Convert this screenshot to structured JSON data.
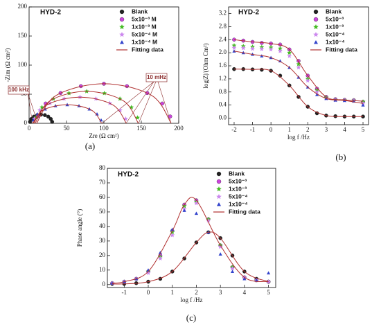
{
  "chart_data": [
    {
      "type": "scatter",
      "title": "HYD-2",
      "panel": "(a)",
      "xlabel": "Zre (Ω cm²)",
      "ylabel": "-Zim (Ω cm²)",
      "annotations": [
        "100 kHz",
        "10 mHz"
      ],
      "xlim": [
        0,
        200
      ],
      "xticks": [
        0,
        50,
        100,
        150,
        200
      ],
      "ylim": [
        0,
        200
      ],
      "yticks": [
        0,
        50,
        100,
        150,
        200
      ],
      "series": [
        {
          "name": "Blank",
          "color": "#222222",
          "marker": "circle",
          "x": [
            1.2,
            3.0,
            6.4,
            10.9,
            16,
            21.1,
            25.6,
            29.0,
            30.8
          ],
          "values": [
            2.6,
            7.5,
            11.5,
            14.1,
            15,
            14.1,
            11.5,
            7.5,
            2.6
          ]
        },
        {
          "name": "5x10⁻³ M",
          "color": "#cc44dd",
          "marker": "circle",
          "x": [
            11.4,
            22.1,
            42.1,
            69.2,
            100,
            130.8,
            157.9,
            177.9,
            188.6
          ],
          "values": [
            11.8,
            34,
            52.1,
            63.9,
            68,
            63.9,
            52.1,
            34,
            11.8
          ]
        },
        {
          "name": "1x10⁻³ M",
          "color": "#44bb22",
          "marker": "star",
          "x": [
            9.0,
            17.2,
            32.6,
            53.4,
            77,
            100.6,
            121.4,
            136.8,
            145.0
          ],
          "values": [
            9.6,
            27.5,
            42.1,
            51.7,
            55,
            51.7,
            42.1,
            27.5,
            9.6
          ]
        },
        {
          "name": "5x10⁻⁴ M",
          "color": "#cc88ee",
          "marker": "star",
          "x": [
            6.9,
            14.3,
            28.1,
            46.8,
            68,
            89.2,
            107.9,
            121.7,
            129.1
          ],
          "values": [
            7.8,
            22.5,
            34.5,
            42.3,
            45,
            42.3,
            34.5,
            22.5,
            7.8
          ]
        },
        {
          "name": "1x10⁻⁴ M",
          "color": "#3344cc",
          "marker": "triangle",
          "x": [
            5.7,
            11.2,
            21.4,
            35.3,
            51,
            66.7,
            80.6,
            90.8,
            96.3
          ],
          "values": [
            5.6,
            16,
            24.5,
            30.1,
            32,
            30.1,
            24.5,
            16,
            5.6
          ]
        },
        {
          "name": "Fitting data",
          "color": "#b03030",
          "marker": "line",
          "x": [
            10,
            36.4,
            100,
            163.6,
            190,
            null,
            8,
            28.2,
            77,
            125.8,
            146,
            null,
            6,
            24.2,
            68,
            111.8,
            130,
            null,
            5,
            18.5,
            51,
            83.5,
            97
          ],
          "values": [
            0,
            48.1,
            68,
            48.1,
            0,
            null,
            0,
            38.9,
            55,
            38.9,
            0,
            null,
            0,
            31.8,
            45,
            31.8,
            0,
            null,
            0,
            22.6,
            32,
            22.6,
            0
          ]
        }
      ]
    },
    {
      "type": "scatter",
      "title": "HYD-2",
      "panel": "(b)",
      "xlabel": "log f /Hz",
      "ylabel": "log|Z|/(Ohm Cm²)",
      "xlim": [
        -2.3,
        5.3
      ],
      "xticks": [
        -2,
        -1,
        0,
        1,
        2,
        3,
        4,
        5
      ],
      "ylim": [
        -0.2,
        3.4
      ],
      "yticks": [
        {
          "value": 0,
          "label": "0.0"
        },
        0.4,
        0.8,
        1.2,
        1.6,
        {
          "value": 2,
          "label": "2.0"
        },
        2.4,
        2.8,
        3.2
      ],
      "x": [
        -2,
        -1.5,
        -1,
        -0.5,
        0,
        0.5,
        1,
        1.5,
        2,
        2.5,
        3,
        3.5,
        4,
        4.5,
        5
      ],
      "series": [
        {
          "name": "Blank",
          "color": "#222222",
          "marker": "circle",
          "values": [
            1.5,
            1.5,
            1.49,
            1.48,
            1.45,
            1.3,
            1.0,
            0.65,
            0.35,
            0.15,
            0.08,
            0.06,
            0.05,
            0.05,
            0.05
          ]
        },
        {
          "name": "5x10⁻³",
          "color": "#cc44dd",
          "marker": "circle",
          "values": [
            2.4,
            2.37,
            2.33,
            2.3,
            2.28,
            2.25,
            2.1,
            1.75,
            1.3,
            0.9,
            0.65,
            0.58,
            0.56,
            0.55,
            0.5
          ]
        },
        {
          "name": "1x10⁻³",
          "color": "#44bb22",
          "marker": "star",
          "values": [
            2.22,
            2.2,
            2.18,
            2.17,
            2.16,
            2.13,
            2.0,
            1.65,
            1.2,
            0.85,
            0.63,
            0.56,
            0.55,
            0.54,
            0.5
          ]
        },
        {
          "name": "5x10⁻⁴",
          "color": "#cc88ee",
          "marker": "star",
          "values": [
            2.15,
            2.14,
            2.12,
            2.11,
            2.1,
            2.05,
            1.9,
            1.55,
            1.15,
            0.8,
            0.6,
            0.55,
            0.54,
            0.53,
            0.45
          ]
        },
        {
          "name": "1x10⁻⁴",
          "color": "#3344cc",
          "marker": "triangle",
          "values": [
            2.05,
            2.0,
            1.95,
            1.9,
            1.85,
            1.75,
            1.55,
            1.25,
            0.95,
            0.72,
            0.6,
            0.55,
            0.54,
            0.52,
            0.4
          ]
        },
        {
          "name": "Fitting data",
          "color": "#b03030",
          "marker": "line",
          "x": [
            -2,
            -1,
            0,
            1,
            2,
            3,
            4,
            5,
            null,
            -2,
            -1,
            0,
            1,
            2,
            3,
            4,
            5,
            null,
            -2,
            -1,
            0,
            1,
            2,
            3,
            4,
            5
          ],
          "values": [
            1.5,
            1.49,
            1.45,
            1.0,
            0.35,
            0.08,
            0.05,
            0.05,
            null,
            2.4,
            2.33,
            2.28,
            2.1,
            1.3,
            0.65,
            0.56,
            0.52,
            null,
            2.05,
            1.95,
            1.85,
            1.55,
            0.95,
            0.6,
            0.54,
            0.45
          ]
        }
      ]
    },
    {
      "type": "scatter",
      "title": "HYD-2",
      "panel": "(c)",
      "xlabel": "log f /Hz",
      "ylabel": "Phase angle (°)",
      "xlim": [
        -1.7,
        5.3
      ],
      "xticks": [
        -1,
        0,
        1,
        2,
        3,
        4,
        5
      ],
      "ylim": [
        -2,
        80
      ],
      "yticks": [
        0,
        10,
        20,
        30,
        40,
        50,
        60,
        70,
        80
      ],
      "x": [
        -1.5,
        -1,
        -0.5,
        0,
        0.5,
        1,
        1.5,
        2,
        2.5,
        3,
        3.5,
        4,
        4.5,
        5
      ],
      "series": [
        {
          "name": "Blank",
          "color": "#222222",
          "marker": "circle",
          "values": [
            0.5,
            0.5,
            1,
            2,
            4,
            9,
            18,
            29,
            36,
            32,
            20,
            9,
            4,
            2
          ]
        },
        {
          "name": "5x10⁻³",
          "color": "#cc44dd",
          "marker": "circle",
          "values": [
            1,
            2,
            4,
            9,
            20,
            37,
            55,
            58,
            45,
            27,
            12,
            5,
            3,
            2
          ]
        },
        {
          "name": "1x10⁻³",
          "color": "#44bb22",
          "marker": "star",
          "values": [
            1,
            2,
            4,
            9,
            19,
            36,
            54,
            57,
            45,
            27,
            12,
            5,
            3,
            2
          ]
        },
        {
          "name": "5x10⁻⁴",
          "color": "#cc88ee",
          "marker": "star",
          "values": [
            1,
            2,
            4,
            8,
            18,
            34,
            52,
            56,
            44,
            26,
            11,
            5,
            3,
            2
          ]
        },
        {
          "name": "1x10⁻⁴",
          "color": "#3344cc",
          "marker": "triangle",
          "values": [
            1,
            2,
            4,
            10,
            22,
            38,
            51,
            49,
            36,
            21,
            9,
            4,
            3,
            8
          ]
        },
        {
          "name": "Fitting data",
          "color": "#b03030",
          "marker": "line",
          "x": [
            -1.5,
            -1,
            0,
            1,
            2,
            2.5,
            3,
            4,
            5,
            null,
            -1.5,
            -1,
            0,
            1,
            1.5,
            2,
            3,
            4,
            5
          ],
          "values": [
            0.5,
            0.5,
            2,
            9,
            29,
            36,
            32,
            9,
            2,
            null,
            1,
            2,
            9,
            37,
            55,
            58,
            27,
            5,
            2
          ]
        }
      ]
    }
  ]
}
